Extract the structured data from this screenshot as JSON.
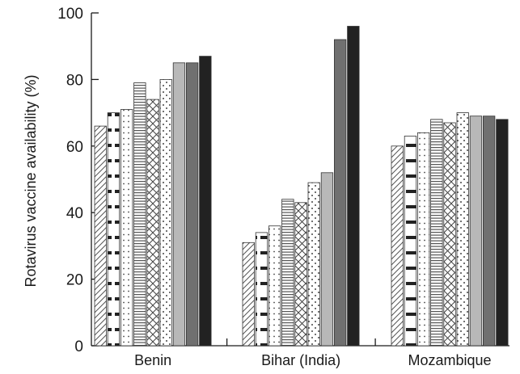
{
  "chart_data": {
    "type": "bar",
    "title": "",
    "xlabel": "",
    "ylabel": "Rotavirus vaccine availability (%)",
    "ylim": [
      0,
      100
    ],
    "yticks": [
      "0",
      "20",
      "40",
      "60",
      "80",
      "100"
    ],
    "grid": false,
    "legend": "none",
    "categories": [
      "Benin",
      "Bihar (India)",
      "Mozambique"
    ],
    "series": [
      {
        "pattern": "diagonal-hatch",
        "values": [
          66,
          31,
          60
        ]
      },
      {
        "pattern": "thick-dashes",
        "values": [
          70,
          34,
          63
        ]
      },
      {
        "pattern": "dots",
        "values": [
          71,
          36,
          64
        ]
      },
      {
        "pattern": "horizontal-lines",
        "values": [
          79,
          44,
          68
        ]
      },
      {
        "pattern": "crosshatch",
        "values": [
          74,
          43,
          67
        ]
      },
      {
        "pattern": "sparse-dots",
        "values": [
          80,
          49,
          70
        ]
      },
      {
        "pattern": "light-gray",
        "color": "#b8b8b8",
        "values": [
          85,
          52,
          69
        ]
      },
      {
        "pattern": "mid-gray",
        "color": "#707070",
        "values": [
          85,
          92,
          69
        ]
      },
      {
        "pattern": "black",
        "color": "#222222",
        "values": [
          87,
          96,
          68
        ]
      }
    ]
  }
}
